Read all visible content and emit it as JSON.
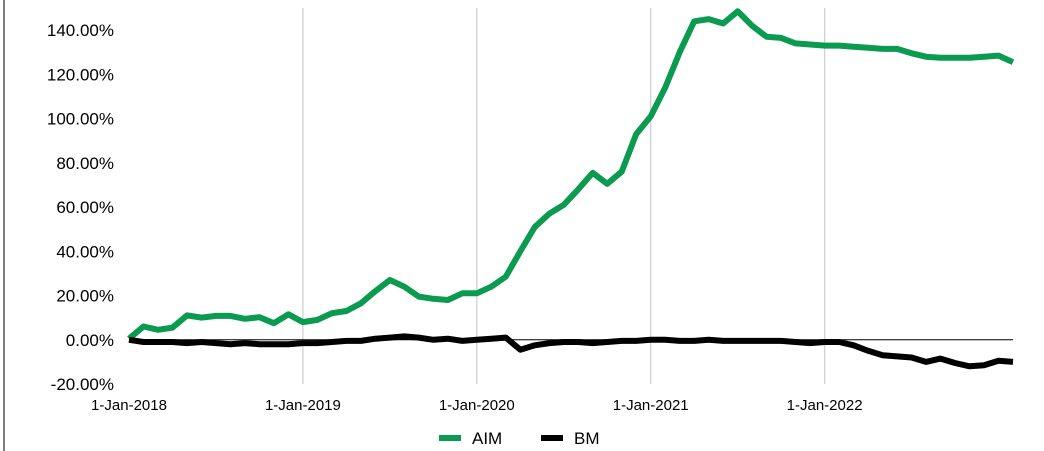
{
  "chart_data": {
    "type": "line",
    "title": "",
    "xlabel": "",
    "ylabel": "",
    "x_start": "2018-01",
    "x_frequency": "monthly",
    "x_tick_labels": [
      "1-Jan-2018",
      "1-Jan-2019",
      "1-Jan-2020",
      "1-Jan-2021",
      "1-Jan-2022"
    ],
    "y_tick_labels": [
      "140.00%",
      "120.00%",
      "100.00%",
      "80.00%",
      "60.00%",
      "40.00%",
      "20.00%",
      "0.00%",
      "-20.00%"
    ],
    "ylim": [
      -20,
      150
    ],
    "y_ticks": [
      140,
      120,
      100,
      80,
      60,
      40,
      20,
      0,
      -20
    ],
    "grid": "vertical",
    "legend_position": "bottom",
    "series": [
      {
        "name": "AIM",
        "color": "#0a9a50",
        "values": [
          0.5,
          6,
          4.5,
          5.5,
          11,
          10,
          10.8,
          10.8,
          9.5,
          10.2,
          7.5,
          11.5,
          8,
          9,
          12,
          13,
          16.5,
          22,
          27,
          24,
          19.5,
          18.5,
          18,
          21,
          21,
          24,
          28.5,
          40,
          51,
          57,
          61,
          68,
          75.5,
          70.5,
          76,
          93,
          101,
          114,
          130,
          144,
          145,
          143,
          148.5,
          142,
          137,
          136.5,
          134,
          133.5,
          133,
          133,
          132.5,
          132,
          131.5,
          131.5,
          129.5,
          128,
          127.5,
          127.5,
          127.5,
          128,
          128.5,
          125.5
        ]
      },
      {
        "name": "BM",
        "color": "#000000",
        "values": [
          0,
          -1,
          -1,
          -1,
          -1.5,
          -1,
          -1.5,
          -2,
          -1.5,
          -2,
          -2,
          -2,
          -1.5,
          -1.5,
          -1,
          -0.5,
          -0.5,
          0.5,
          1,
          1.5,
          1,
          0,
          0.5,
          -0.5,
          0,
          0.5,
          1,
          -4.5,
          -2.5,
          -1.5,
          -1,
          -1,
          -1.5,
          -1,
          -0.5,
          -0.5,
          0,
          0,
          -0.5,
          -0.5,
          0,
          -0.5,
          -0.5,
          -0.5,
          -0.5,
          -0.5,
          -1,
          -1.5,
          -1,
          -1,
          -2.5,
          -5,
          -7,
          -7.5,
          -8,
          -10,
          -8.5,
          -10.5,
          -12,
          -11.5,
          -9.5,
          -10
        ]
      }
    ]
  }
}
